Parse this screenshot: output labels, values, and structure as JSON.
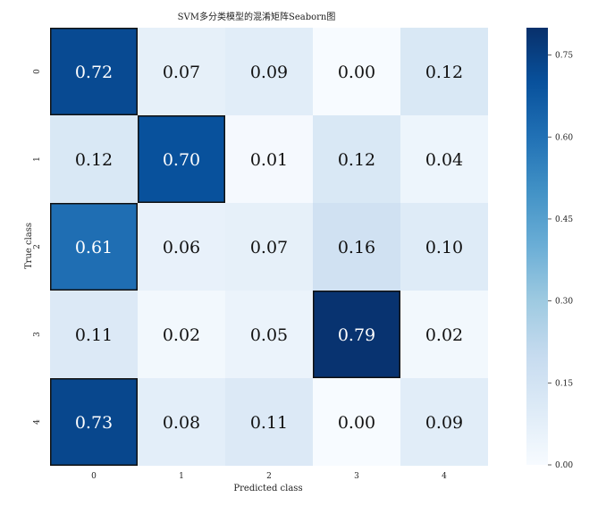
{
  "chart_data": {
    "type": "heatmap",
    "title": "SVM多分类模型的混淆矩阵Seaborn图",
    "xlabel": "Predicted class",
    "ylabel": "True class",
    "x_categories": [
      "0",
      "1",
      "2",
      "3",
      "4"
    ],
    "y_categories": [
      "0",
      "1",
      "2",
      "3",
      "4"
    ],
    "values": [
      [
        0.72,
        0.07,
        0.09,
        0.0,
        0.12
      ],
      [
        0.12,
        0.7,
        0.01,
        0.12,
        0.04
      ],
      [
        0.61,
        0.06,
        0.07,
        0.16,
        0.1
      ],
      [
        0.11,
        0.02,
        0.05,
        0.79,
        0.02
      ],
      [
        0.73,
        0.08,
        0.11,
        0.0,
        0.09
      ]
    ],
    "value_format": "0.00",
    "colormap": "Blues",
    "vmin": 0.0,
    "vmax": 0.8,
    "colorbar": {
      "ticks": [
        0.0,
        0.15,
        0.3,
        0.45,
        0.6,
        0.75
      ],
      "tick_labels": [
        "0.00",
        "0.15",
        "0.30",
        "0.45",
        "0.60",
        "0.75"
      ]
    },
    "highlight_color": "#111111",
    "highlight_threshold": 0.5,
    "grid": false,
    "legend": "none"
  }
}
